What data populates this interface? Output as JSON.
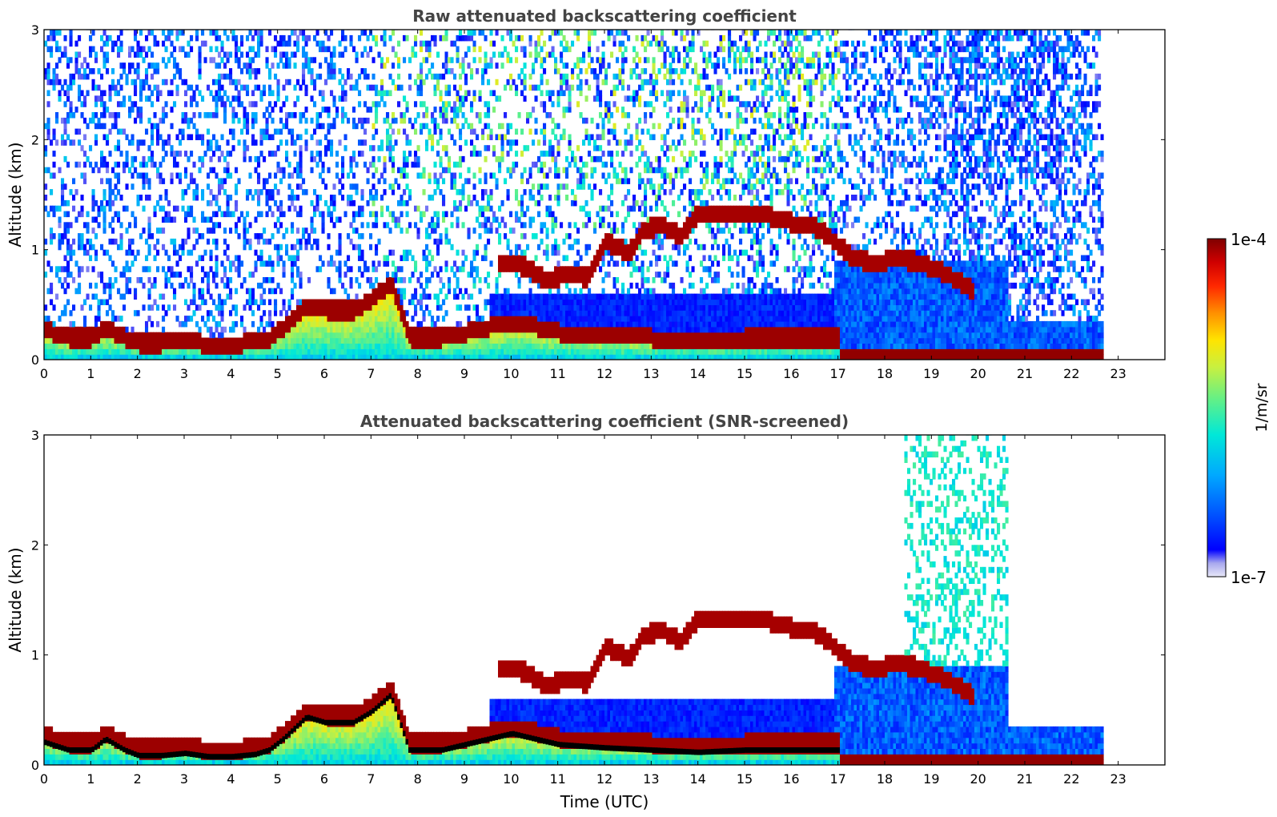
{
  "chart_data": [
    {
      "type": "heatmap",
      "title": "Raw attenuated backscattering coefficient",
      "xlabel": "",
      "ylabel": "Altitude (km)",
      "xlim": [
        0,
        24
      ],
      "ylim": [
        0,
        3
      ],
      "x_ticks": [
        "0",
        "1",
        "2",
        "3",
        "4",
        "5",
        "6",
        "7",
        "8",
        "9",
        "10",
        "11",
        "12",
        "13",
        "14",
        "15",
        "16",
        "17",
        "18",
        "19",
        "20",
        "21",
        "22",
        "23"
      ],
      "y_ticks": [
        "0",
        "1",
        "2",
        "3"
      ],
      "data_end_time": 22.65,
      "color_scale": "log",
      "value_range": [
        1e-07,
        0.0001
      ],
      "dense_layer_top_km": [
        [
          0,
          0.27
        ],
        [
          0.5,
          0.2
        ],
        [
          1,
          0.2
        ],
        [
          1.3,
          0.3
        ],
        [
          1.7,
          0.2
        ],
        [
          2,
          0.15
        ],
        [
          2.5,
          0.15
        ],
        [
          3,
          0.17
        ],
        [
          3.5,
          0.14
        ],
        [
          4,
          0.14
        ],
        [
          4.5,
          0.16
        ],
        [
          4.8,
          0.2
        ],
        [
          5.1,
          0.3
        ],
        [
          5.6,
          0.5
        ],
        [
          6,
          0.45
        ],
        [
          6.6,
          0.45
        ],
        [
          7,
          0.55
        ],
        [
          7.4,
          0.7
        ],
        [
          7.8,
          0.2
        ],
        [
          8.5,
          0.2
        ],
        [
          9,
          0.25
        ],
        [
          9.5,
          0.3
        ],
        [
          10,
          0.35
        ],
        [
          10.5,
          0.3
        ],
        [
          11,
          0.25
        ],
        [
          12,
          0.22
        ],
        [
          13,
          0.2
        ],
        [
          14,
          0.18
        ],
        [
          15,
          0.2
        ],
        [
          16,
          0.2
        ],
        [
          16.9,
          0.2
        ]
      ],
      "elevated_layer_km": [
        [
          9.7,
          0.87
        ],
        [
          10.3,
          0.82
        ],
        [
          10.7,
          0.7
        ],
        [
          11.2,
          0.75
        ],
        [
          11.6,
          0.72
        ],
        [
          12,
          1.05
        ],
        [
          12.5,
          0.95
        ],
        [
          12.8,
          1.15
        ],
        [
          13.2,
          1.2
        ],
        [
          13.6,
          1.1
        ],
        [
          14,
          1.32
        ],
        [
          14.5,
          1.28
        ],
        [
          15,
          1.3
        ],
        [
          15.5,
          1.28
        ],
        [
          16,
          1.22
        ],
        [
          16.5,
          1.18
        ],
        [
          16.9,
          1.05
        ],
        [
          17.3,
          0.9
        ],
        [
          17.8,
          0.85
        ],
        [
          18.2,
          0.9
        ],
        [
          18.6,
          0.87
        ],
        [
          19.1,
          0.8
        ],
        [
          19.5,
          0.7
        ],
        [
          19.9,
          0.6
        ]
      ],
      "surface_layer_top_km": [
        [
          17,
          0.05
        ],
        [
          19,
          0.06
        ],
        [
          21,
          0.07
        ],
        [
          22.65,
          0.08
        ]
      ]
    },
    {
      "type": "heatmap",
      "title": "Attenuated backscattering coefficient (SNR-screened)",
      "xlabel": "Time (UTC)",
      "ylabel": "Altitude (km)",
      "xlim": [
        0,
        24
      ],
      "ylim": [
        0,
        3
      ],
      "x_ticks": [
        "0",
        "1",
        "2",
        "3",
        "4",
        "5",
        "6",
        "7",
        "8",
        "9",
        "10",
        "11",
        "12",
        "13",
        "14",
        "15",
        "16",
        "17",
        "18",
        "19",
        "20",
        "21",
        "22",
        "23"
      ],
      "y_ticks": [
        "0",
        "1",
        "2",
        "3"
      ],
      "data_end_time": 22.65,
      "color_scale": "log",
      "value_range": [
        1e-07,
        0.0001
      ]
    }
  ],
  "colorbar": {
    "max_label": "1e-4",
    "min_label": "1e-7",
    "label": "1/m/sr",
    "colors": [
      "#e8e8f8",
      "#a8a8ee",
      "#0000ff",
      "#0050ff",
      "#00a8ff",
      "#00e8d8",
      "#5ef08a",
      "#c8f040",
      "#ffe400",
      "#ff9000",
      "#ff2800",
      "#d00000",
      "#7f0000"
    ]
  }
}
